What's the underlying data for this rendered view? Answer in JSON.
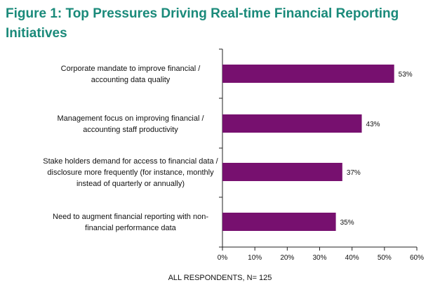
{
  "chart_data": {
    "type": "bar",
    "orientation": "horizontal",
    "title_lines": [
      "Figure 1: Top Pressures Driving Real-time Financial Reporting",
      "Initiatives"
    ],
    "categories": [
      [
        "Corporate mandate to improve financial /",
        "accounting data quality"
      ],
      [
        "Management focus on improving financial /",
        "accounting staff productivity"
      ],
      [
        "Stake holders demand for access to financial data /",
        "disclosure more frequently (for instance, monthly",
        "instead of quarterly or annually)"
      ],
      [
        "Need to augment financial reporting with non-",
        "financial performance data"
      ]
    ],
    "values": [
      53,
      43,
      37,
      35
    ],
    "value_labels": [
      "53%",
      "43%",
      "37%",
      "35%"
    ],
    "xlim": [
      0,
      60
    ],
    "x_ticks": [
      0,
      10,
      20,
      30,
      40,
      50,
      60
    ],
    "x_tick_labels": [
      "0%",
      "10%",
      "20%",
      "30%",
      "40%",
      "50%",
      "60%"
    ],
    "bar_color": "#77106f",
    "footer": "ALL RESPONDENTS, N= 125",
    "grid": false,
    "legend": "none"
  }
}
